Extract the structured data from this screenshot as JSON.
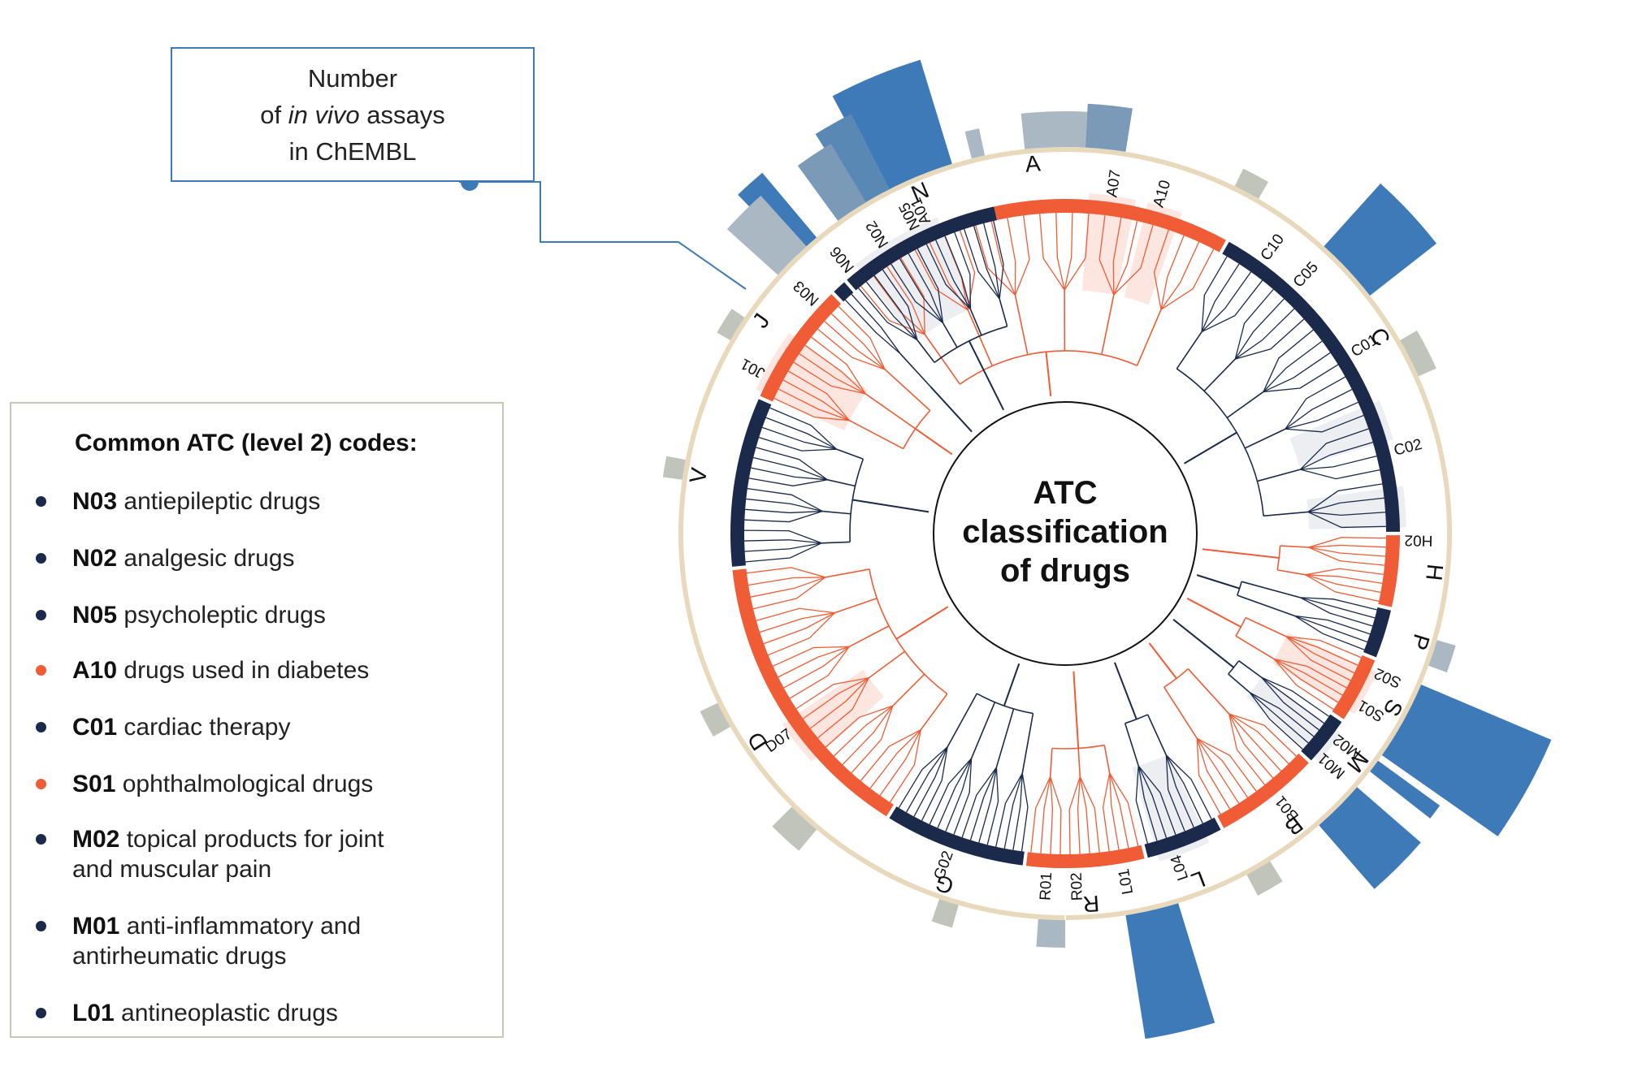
{
  "colors": {
    "navy": "#1b2a4a",
    "orange": "#ef5c35",
    "bar_blue": "#3f7ab8",
    "bar_grey": "#c0c4bb",
    "ring_tan": "#e8d9bd",
    "orange_shade": "#fde6e0",
    "grey_shade": "#eceef2"
  },
  "callout": {
    "line1": "Number",
    "line2_pre": "of ",
    "line2_em": "in vivo",
    "line2_post": " assays",
    "line3": "in ChEMBL"
  },
  "center": {
    "line1": "ATC",
    "line2": "classification",
    "line3": "of drugs"
  },
  "level1_labels": [
    "A",
    "C",
    "H",
    "P",
    "S",
    "M",
    "B",
    "L",
    "R",
    "G",
    "D",
    "V",
    "J",
    "N"
  ],
  "level2_labels": [
    "A01",
    "A07",
    "A10",
    "C10",
    "C05",
    "C01",
    "C02",
    "H02",
    "S02",
    "S01",
    "M02",
    "M01",
    "B01",
    "L04",
    "L01",
    "R02",
    "R01",
    "G02",
    "D07",
    "J01",
    "N03",
    "N06",
    "N02",
    "N05"
  ],
  "legend": {
    "title": "Common ATC (level 2) codes:",
    "items": [
      {
        "code": "N03",
        "desc": "antiepileptic drugs",
        "color": "navy"
      },
      {
        "code": "N02",
        "desc": "analgesic drugs",
        "color": "navy"
      },
      {
        "code": "N05",
        "desc": "psycholeptic drugs",
        "color": "navy"
      },
      {
        "code": "A10",
        "desc": "drugs used in diabetes",
        "color": "orange"
      },
      {
        "code": "C01",
        "desc": "cardiac therapy",
        "color": "navy"
      },
      {
        "code": "S01",
        "desc": "ophthalmological drugs",
        "color": "orange"
      },
      {
        "code": "M02",
        "desc": "topical products for joint",
        "desc2": "and muscular pain",
        "color": "navy"
      },
      {
        "code": "M01",
        "desc": "anti-inflammatory and",
        "desc2": "antirheumatic drugs",
        "color": "navy"
      },
      {
        "code": "L01",
        "desc": "antineoplastic drugs",
        "color": "navy"
      }
    ]
  }
}
